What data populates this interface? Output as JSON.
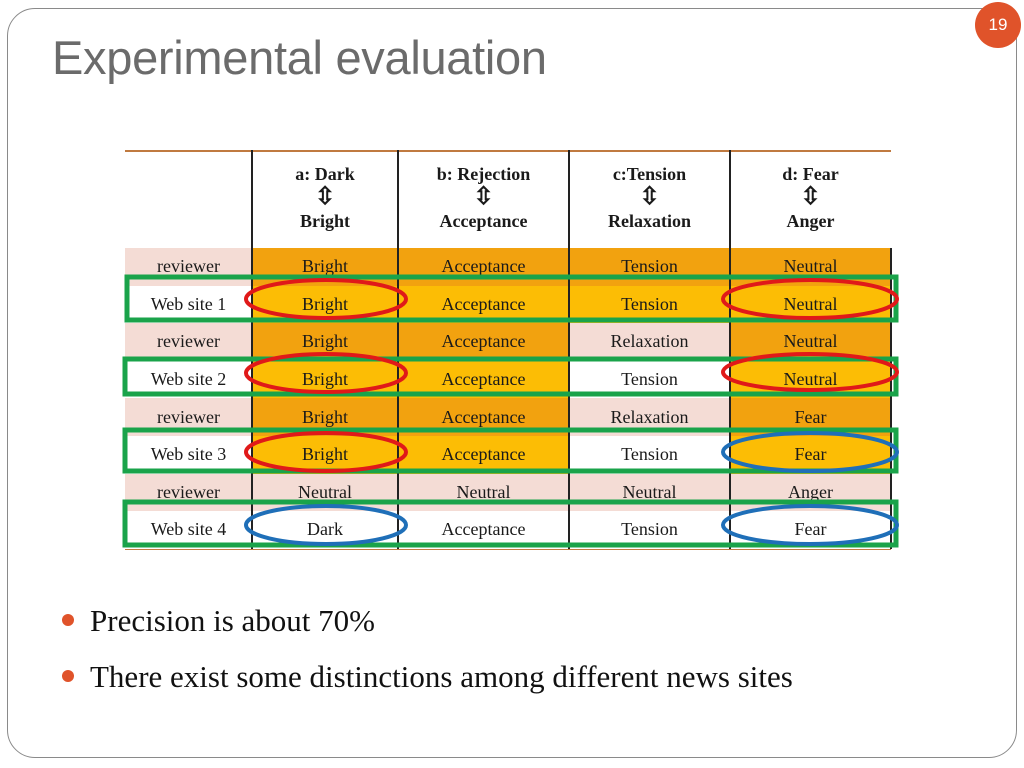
{
  "page_number": "19",
  "title": "Experimental evaluation",
  "table": {
    "headers": [
      {
        "top": "",
        "arrow": "",
        "bottom": ""
      },
      {
        "top": "a:  Dark",
        "arrow": "⇳",
        "bottom": "Bright"
      },
      {
        "top": "b: Rejection",
        "arrow": "⇳",
        "bottom": "Acceptance"
      },
      {
        "top": "c:Tension",
        "arrow": "⇳",
        "bottom": "Relaxation"
      },
      {
        "top": "d: Fear",
        "arrow": "⇳",
        "bottom": "Anger"
      }
    ],
    "rows": [
      {
        "label": "reviewer",
        "cells": [
          "Bright",
          "Acceptance",
          "Tension",
          "Neutral"
        ]
      },
      {
        "label": "Web site 1",
        "cells": [
          "Bright",
          "Acceptance",
          "Tension",
          "Neutral"
        ]
      },
      {
        "label": "reviewer",
        "cells": [
          "Bright",
          "Acceptance",
          "Relaxation",
          "Neutral"
        ]
      },
      {
        "label": "Web site 2",
        "cells": [
          "Bright",
          "Acceptance",
          "Tension",
          "Neutral"
        ]
      },
      {
        "label": "reviewer",
        "cells": [
          "Bright",
          "Acceptance",
          "Relaxation",
          "Fear"
        ]
      },
      {
        "label": "Web site 3",
        "cells": [
          "Bright",
          "Acceptance",
          "Tension",
          "Fear"
        ]
      },
      {
        "label": "reviewer",
        "cells": [
          "Neutral",
          "Neutral",
          "Neutral",
          "Anger"
        ]
      },
      {
        "label": "Web site 4",
        "cells": [
          "Dark",
          "Acceptance",
          "Tension",
          "Fear"
        ]
      }
    ]
  },
  "bullets": [
    "Precision is about 70%",
    "There exist some distinctions among different news sites"
  ],
  "colors": {
    "accent": "#e0532a",
    "title": "#6b6b6b",
    "reviewer_row": "#f4dcd5",
    "reviewer_match": "#f2a20f",
    "website_match": "#fcbd05",
    "website_row": "#ffffff",
    "highlight_row_box": "#1aa34a",
    "match_ellipse": "#e01919",
    "mismatch_ellipse": "#1f6fb8"
  }
}
